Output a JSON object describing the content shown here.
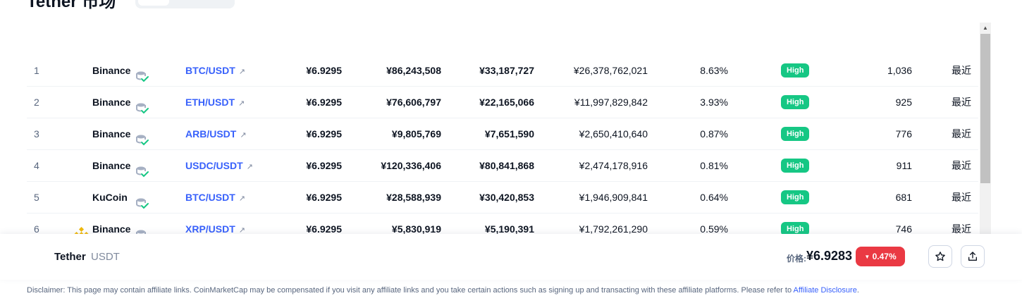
{
  "header": {
    "title": "Tether 市场"
  },
  "table": {
    "rows": [
      {
        "rank": "1",
        "exchange": "Binance",
        "pair": "BTC/USDT",
        "price": "¥6.9295",
        "plus2": "¥86,243,508",
        "minus2": "¥33,187,727",
        "volume": "¥26,378,762,021",
        "share": "8.63%",
        "confidence": "High",
        "score": "1,036",
        "updated": "最近",
        "show_logo": false
      },
      {
        "rank": "2",
        "exchange": "Binance",
        "pair": "ETH/USDT",
        "price": "¥6.9295",
        "plus2": "¥76,606,797",
        "minus2": "¥22,165,066",
        "volume": "¥11,997,829,842",
        "share": "3.93%",
        "confidence": "High",
        "score": "925",
        "updated": "最近",
        "show_logo": false
      },
      {
        "rank": "3",
        "exchange": "Binance",
        "pair": "ARB/USDT",
        "price": "¥6.9295",
        "plus2": "¥9,805,769",
        "minus2": "¥7,651,590",
        "volume": "¥2,650,410,640",
        "share": "0.87%",
        "confidence": "High",
        "score": "776",
        "updated": "最近",
        "show_logo": false
      },
      {
        "rank": "4",
        "exchange": "Binance",
        "pair": "USDC/USDT",
        "price": "¥6.9295",
        "plus2": "¥120,336,406",
        "minus2": "¥80,841,868",
        "volume": "¥2,474,178,916",
        "share": "0.81%",
        "confidence": "High",
        "score": "911",
        "updated": "最近",
        "show_logo": false
      },
      {
        "rank": "5",
        "exchange": "KuCoin",
        "pair": "BTC/USDT",
        "price": "¥6.9295",
        "plus2": "¥28,588,939",
        "minus2": "¥30,420,853",
        "volume": "¥1,946,909,841",
        "share": "0.64%",
        "confidence": "High",
        "score": "681",
        "updated": "最近",
        "show_logo": false
      },
      {
        "rank": "6",
        "exchange": "Binance",
        "pair": "XRP/USDT",
        "price": "¥6.9295",
        "plus2": "¥5,830,919",
        "minus2": "¥5,190,391",
        "volume": "¥1,792,261,290",
        "share": "0.59%",
        "confidence": "High",
        "score": "746",
        "updated": "最近",
        "show_logo": true
      }
    ],
    "icons": {
      "verified": "verified-reserve-icon",
      "external_link": "external-link-icon",
      "exchange_logo": "binance-logo-icon"
    }
  },
  "sticky_bar": {
    "coin_name": "Tether",
    "coin_symbol": "USDT",
    "price_label": "价格:",
    "price": "¥6.9283",
    "change": "0.47%",
    "change_color": "#ea3943",
    "icons": {
      "change": "caret-down-icon",
      "watchlist": "star-icon",
      "share": "share-icon"
    }
  },
  "footer": {
    "disclaimer_text": "Disclaimer: This page may contain affiliate links. CoinMarketCap may be compensated if you visit any affiliate links and you take certain actions such as signing up and transacting with these affiliate platforms. Please refer to",
    "disclaimer_link": "Affiliate Disclosure",
    "disclaimer_end": "."
  },
  "colors": {
    "link": "#3861fb",
    "high_badge": "#16c784",
    "negative": "#ea3943"
  }
}
